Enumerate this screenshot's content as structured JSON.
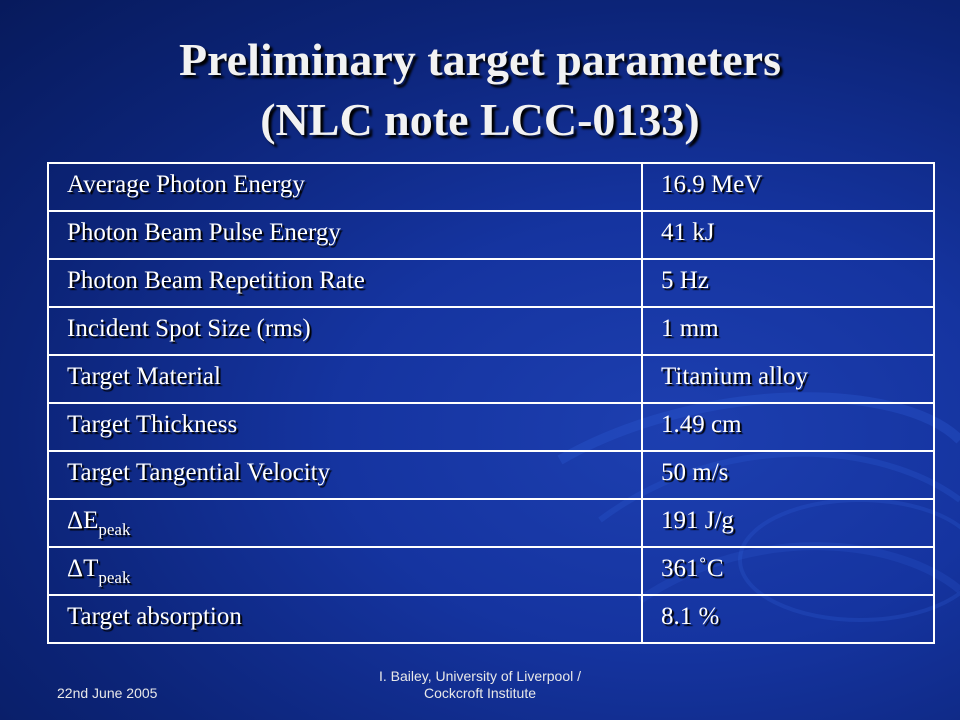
{
  "slide": {
    "title_line1": "Preliminary target parameters",
    "title_line2": "(NLC note LCC-0133)"
  },
  "table": {
    "rows": [
      {
        "label": "Average Photon Energy",
        "value": "16.9 MeV"
      },
      {
        "label": "Photon Beam Pulse Energy",
        "value": "41 kJ"
      },
      {
        "label": "Photon Beam Repetition Rate",
        "value": "5 Hz"
      },
      {
        "label": "Incident Spot Size (rms)",
        "value": "1 mm"
      },
      {
        "label": "Target Material",
        "value": "Titanium alloy"
      },
      {
        "label": "Target Thickness",
        "value": "1.49 cm"
      },
      {
        "label": "Target Tangential Velocity",
        "value": "50 m/s"
      },
      {
        "label_symbol": "ΔE",
        "label_subscript": "peak",
        "value": "191 J/g"
      },
      {
        "label_symbol": "ΔT",
        "label_subscript": "peak",
        "value": "361˚C"
      },
      {
        "label": "Target absorption",
        "value": "8.1 %"
      }
    ]
  },
  "footer": {
    "date": "22nd June 2005",
    "author_line1": "I. Bailey, University of Liverpool /",
    "author_line2": "Cockcroft Institute"
  },
  "colors": {
    "background": "#1534a0",
    "text": "#ffffff",
    "grid": "#ffffff"
  }
}
